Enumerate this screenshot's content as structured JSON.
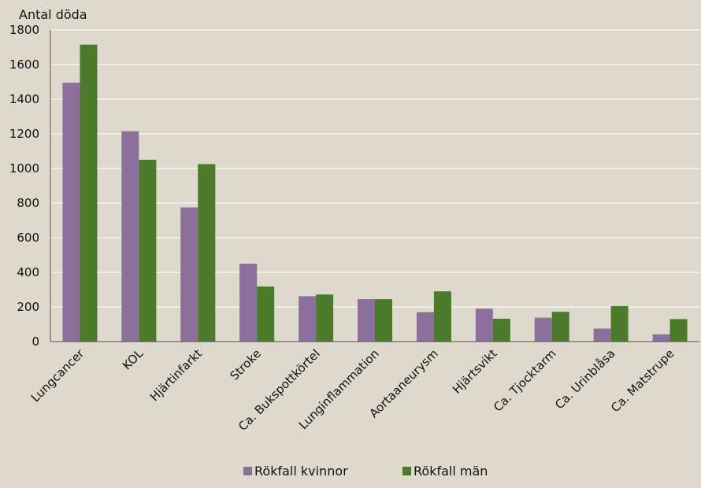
{
  "chart_data": {
    "type": "bar",
    "title": "",
    "xlabel": "",
    "ylabel": "Antal döda",
    "ylim": [
      0,
      1800
    ],
    "yticks": [
      0,
      200,
      400,
      600,
      800,
      1000,
      1200,
      1400,
      1600,
      1800
    ],
    "grid": true,
    "legend_position": "bottom",
    "categories": [
      "Lungcancer",
      "KOL",
      "Hjärtinfarkt",
      "Stroke",
      "Ca. Bukspottkörtel",
      "Lunginflammation",
      "Aortaaneurysm",
      "Hjärtsvikt",
      "Ca. Tjocktarm",
      "Ca. Urinblåsa",
      "Ca. Matstrupe"
    ],
    "series": [
      {
        "name": "Rökfall kvinnor",
        "color": "#8c6f9b",
        "values": [
          1495,
          1215,
          775,
          450,
          262,
          245,
          170,
          190,
          138,
          75,
          42
        ]
      },
      {
        "name": "Rökfall män",
        "color": "#4a7a2a",
        "values": [
          1715,
          1050,
          1025,
          318,
          272,
          245,
          290,
          132,
          172,
          205,
          130
        ]
      }
    ]
  }
}
